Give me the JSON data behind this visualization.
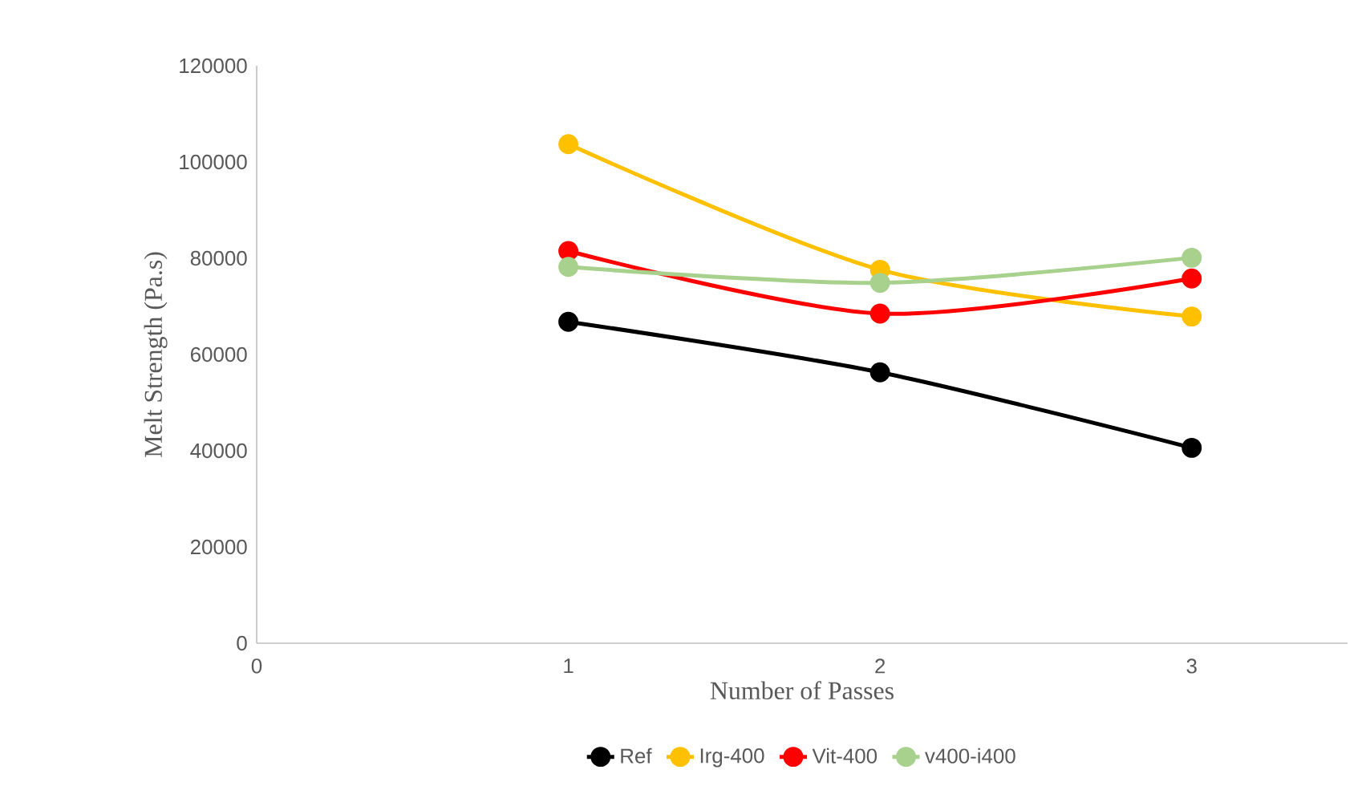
{
  "chart_data": {
    "type": "line",
    "xlabel": "Number of Passes",
    "ylabel": "Melt Strength (Pa.s)",
    "x": [
      1,
      2,
      3
    ],
    "series": [
      {
        "name": "Ref",
        "color": "#000000",
        "values": [
          66800,
          56300,
          40600
        ]
      },
      {
        "name": "Irg-400",
        "color": "#ffc000",
        "values": [
          103700,
          77600,
          67900
        ]
      },
      {
        "name": "Vit-400",
        "color": "#ff0000",
        "values": [
          81500,
          68500,
          75800
        ]
      },
      {
        "name": "v400-i400",
        "color": "#a9d18e",
        "values": [
          78200,
          74900,
          80100
        ]
      }
    ],
    "xlim": [
      0,
      3.5
    ],
    "xticks": [
      0,
      1,
      2,
      3
    ],
    "ylim": [
      0,
      120000
    ],
    "yticks": [
      0,
      20000,
      40000,
      60000,
      80000,
      100000,
      120000
    ],
    "grid": false,
    "legend": "bottom",
    "marker": "circle",
    "line_style": "solid"
  }
}
